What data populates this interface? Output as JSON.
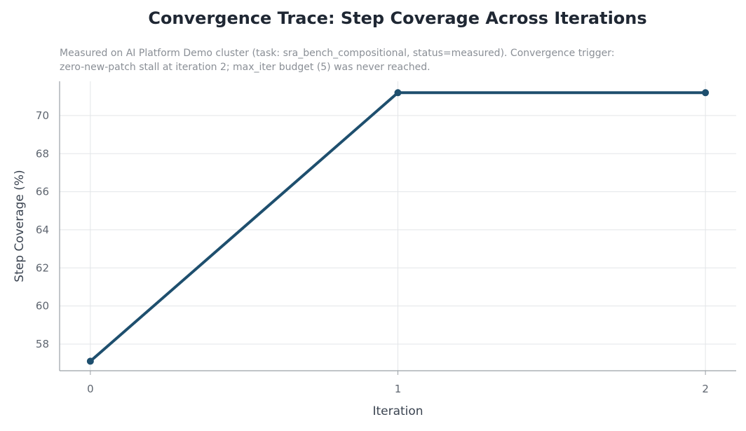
{
  "chart_data": {
    "type": "line",
    "title": "Convergence Trace: Step Coverage Across Iterations",
    "subtitle_lines": [
      "Measured on AI Platform Demo cluster (task: sra_bench_compositional, status=measured). Convergence trigger:",
      "zero-new-patch stall at iteration 2; max_iter budget (5) was never reached."
    ],
    "xlabel": "Iteration",
    "ylabel": "Step Coverage (%)",
    "x": [
      0,
      1,
      2
    ],
    "y": [
      57.1,
      71.2,
      71.2
    ],
    "xlim": [
      -0.1,
      2.1
    ],
    "ylim": [
      56.6,
      71.8
    ],
    "xticks": [
      0,
      1,
      2
    ],
    "yticks": [
      58,
      60,
      62,
      64,
      66,
      68,
      70
    ],
    "grid": true,
    "line_color": "#1e4f6e",
    "grid_color": "#e3e5e8",
    "axis_color": "#9aa0a6"
  }
}
